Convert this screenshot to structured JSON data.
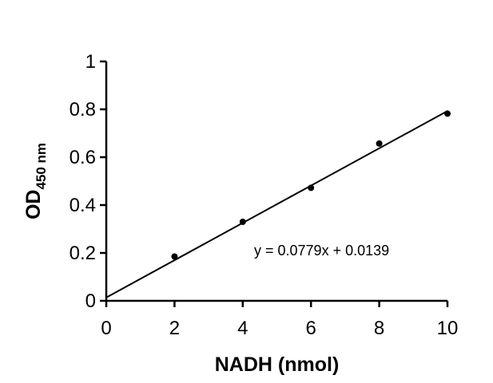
{
  "chart_data": {
    "type": "scatter",
    "xlabel": "NADH (nmol)",
    "ylabel": {
      "main": "OD",
      "subscript": "450 nm"
    },
    "xlim": [
      0,
      10
    ],
    "ylim": [
      0,
      1
    ],
    "xticks": [
      "0",
      "2",
      "4",
      "6",
      "8",
      "10"
    ],
    "yticks": [
      "0",
      "0.2",
      "0.4",
      "0.6",
      "0.8",
      "1"
    ],
    "grid": false,
    "series": [
      {
        "points": [
          {
            "x": 2,
            "y": 0.185
          },
          {
            "x": 4,
            "y": 0.33
          },
          {
            "x": 6,
            "y": 0.472
          },
          {
            "x": 8,
            "y": 0.657
          },
          {
            "x": 10,
            "y": 0.782
          }
        ],
        "color": "#000000"
      }
    ],
    "trendline": {
      "slope": 0.0779,
      "intercept": 0.0139,
      "x_range": [
        0,
        10
      ],
      "equation_label": "y = 0.0779x + 0.0139"
    }
  }
}
